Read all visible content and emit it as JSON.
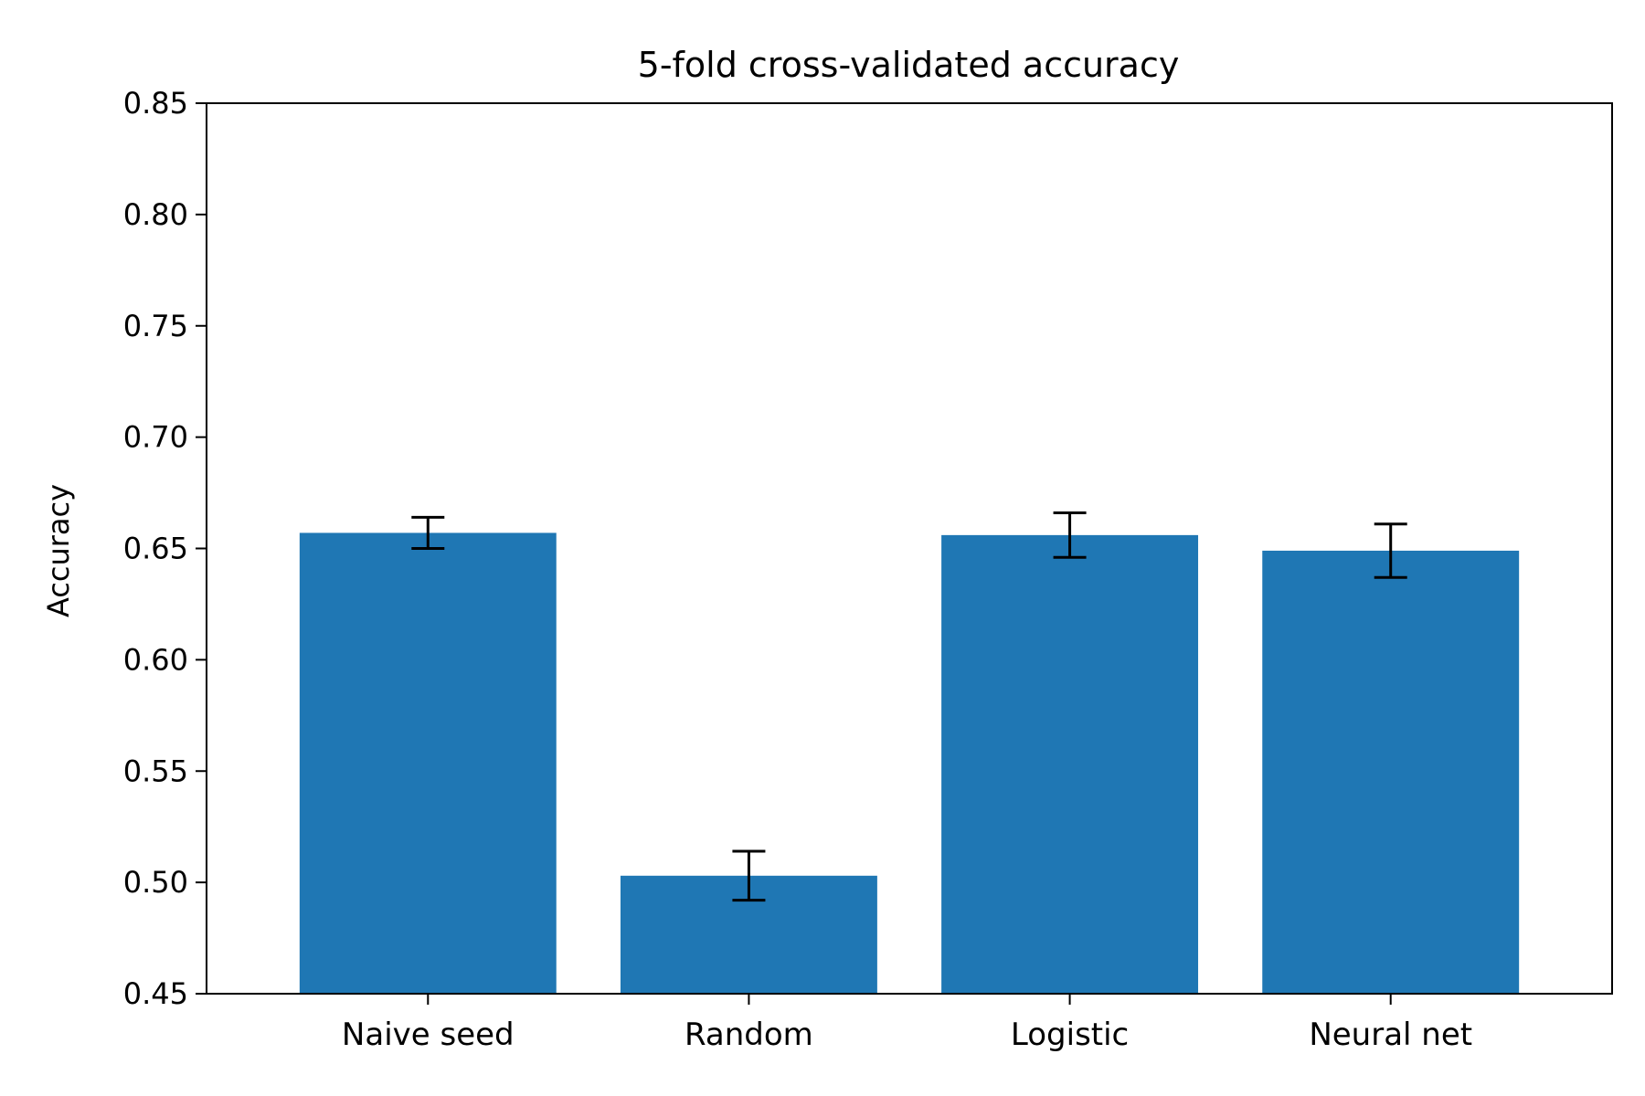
{
  "chart_data": {
    "type": "bar",
    "title": "5-fold cross-validated accuracy",
    "xlabel": "",
    "ylabel": "Accuracy",
    "ylim": [
      0.45,
      0.85
    ],
    "yticks": [
      0.45,
      0.5,
      0.55,
      0.6,
      0.65,
      0.7,
      0.75,
      0.8,
      0.85
    ],
    "ytick_labels": [
      "0.45",
      "0.50",
      "0.55",
      "0.60",
      "0.65",
      "0.70",
      "0.75",
      "0.80",
      "0.85"
    ],
    "categories": [
      "Naive seed",
      "Random",
      "Logistic",
      "Neural net"
    ],
    "values": [
      0.657,
      0.503,
      0.656,
      0.649
    ],
    "errors": [
      0.007,
      0.011,
      0.01,
      0.012
    ],
    "grid": false,
    "legend": "none",
    "colors": {
      "bar": "#1f77b4",
      "error_bar": "#000000",
      "axis": "#000000"
    }
  }
}
